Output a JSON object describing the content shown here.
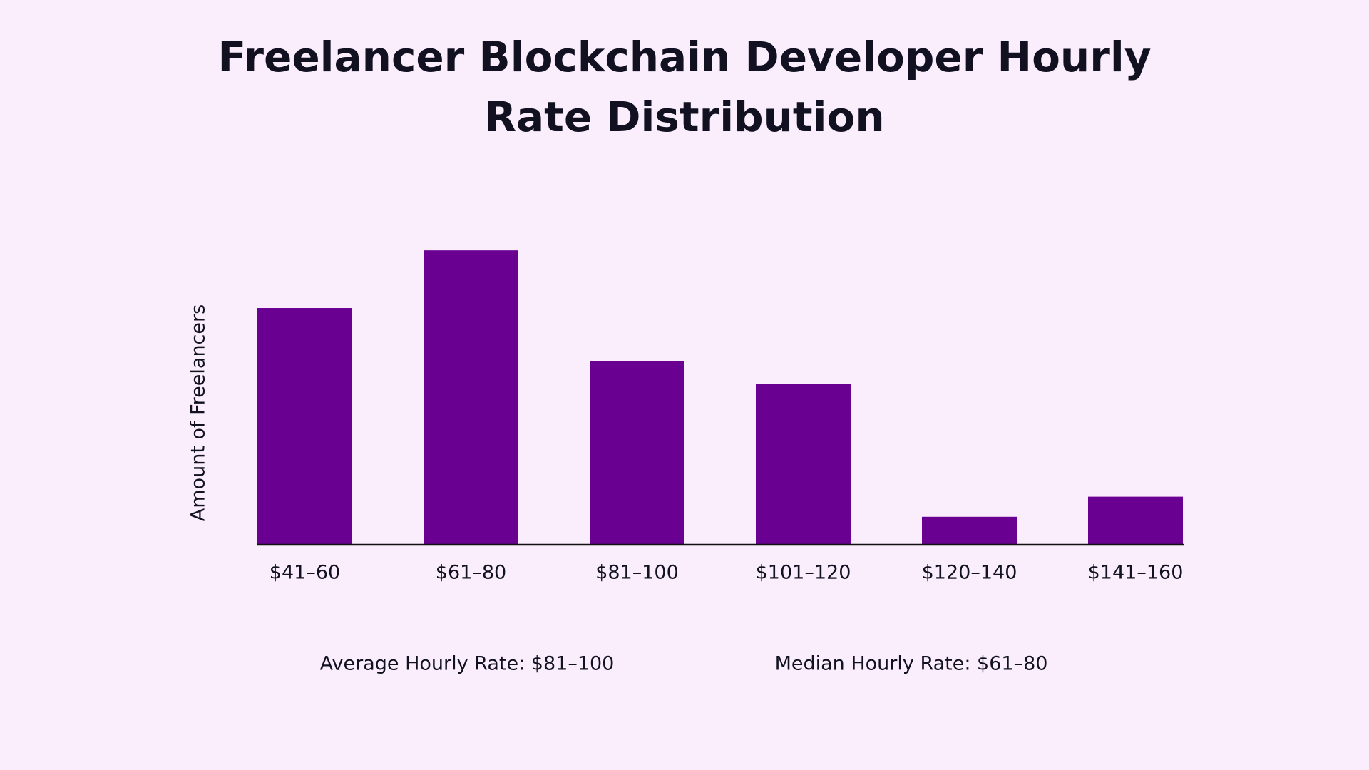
{
  "chart_data": {
    "type": "bar",
    "title": "Freelancer Blockchain Developer Hourly Rate Distribution",
    "y_label": "Amount of Freelancers",
    "categories": [
      "$41–60",
      "$61–80",
      "$81–100",
      "$101–120",
      "$120–140",
      "$141–160"
    ],
    "values": [
      271,
      337,
      210,
      184,
      32,
      55
    ],
    "color": "#690091",
    "ylim": [
      0,
      400
    ],
    "annotations": [
      "Average Hourly Rate: $81–100",
      "Median Hourly Rate: $61–80"
    ]
  }
}
